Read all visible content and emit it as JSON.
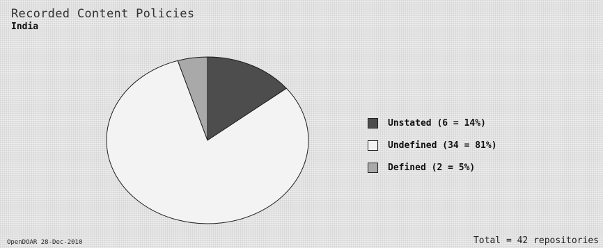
{
  "chart_data": {
    "type": "pie",
    "title": "Recorded Content Policies",
    "subtitle": "India",
    "slices": [
      {
        "label": "Unstated (6 = 14%)",
        "value": 6,
        "percent": 14,
        "color": "#4d4d4d"
      },
      {
        "label": "Undefined (34 = 81%)",
        "value": 34,
        "percent": 81,
        "color": "#f3f3f3"
      },
      {
        "label": "Defined (2 = 5%)",
        "value": 2,
        "percent": 5,
        "color": "#a9a9a9"
      }
    ],
    "legend_position": "right"
  },
  "footer": {
    "source": "OpenDOAR 28-Dec-2010",
    "total": "Total = 42 repositories"
  }
}
